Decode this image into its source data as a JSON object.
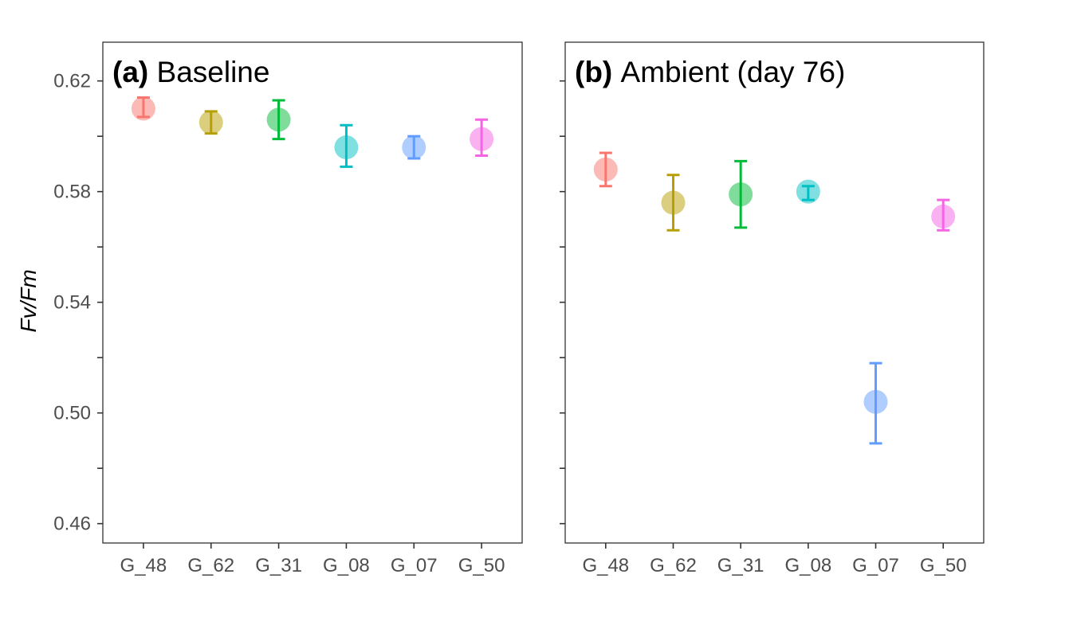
{
  "chart_data": {
    "type": "scatter",
    "ylabel": "Fv/Fm",
    "ylim": [
      0.453,
      0.634
    ],
    "yticks": [
      0.46,
      0.5,
      0.54,
      0.58,
      0.62
    ],
    "yticks_labels": [
      "0.46",
      "0.50",
      "0.54",
      "0.58",
      "0.62"
    ],
    "y_minor_ticks": [
      0.48,
      0.52,
      0.56,
      0.6
    ],
    "grid": false,
    "categories": [
      "G_48",
      "G_62",
      "G_31",
      "G_08",
      "G_07",
      "G_50"
    ],
    "colors": {
      "G_48": "#F8766D",
      "G_62": "#B79F00",
      "G_31": "#00BA38",
      "G_08": "#00BFC4",
      "G_07": "#619CFF",
      "G_50": "#F564E3"
    },
    "panels": [
      {
        "tag": "(a)",
        "title": "Baseline",
        "means": [
          0.61,
          0.605,
          0.606,
          0.596,
          0.596,
          0.599
        ],
        "lower": [
          0.607,
          0.601,
          0.599,
          0.589,
          0.592,
          0.593
        ],
        "upper": [
          0.614,
          0.609,
          0.613,
          0.604,
          0.6,
          0.606
        ]
      },
      {
        "tag": "(b)",
        "title": "Ambient (day 76)",
        "means": [
          0.588,
          0.576,
          0.579,
          0.58,
          0.504,
          0.571
        ],
        "lower": [
          0.582,
          0.566,
          0.567,
          0.577,
          0.489,
          0.566
        ],
        "upper": [
          0.594,
          0.586,
          0.591,
          0.582,
          0.518,
          0.577
        ]
      }
    ]
  }
}
